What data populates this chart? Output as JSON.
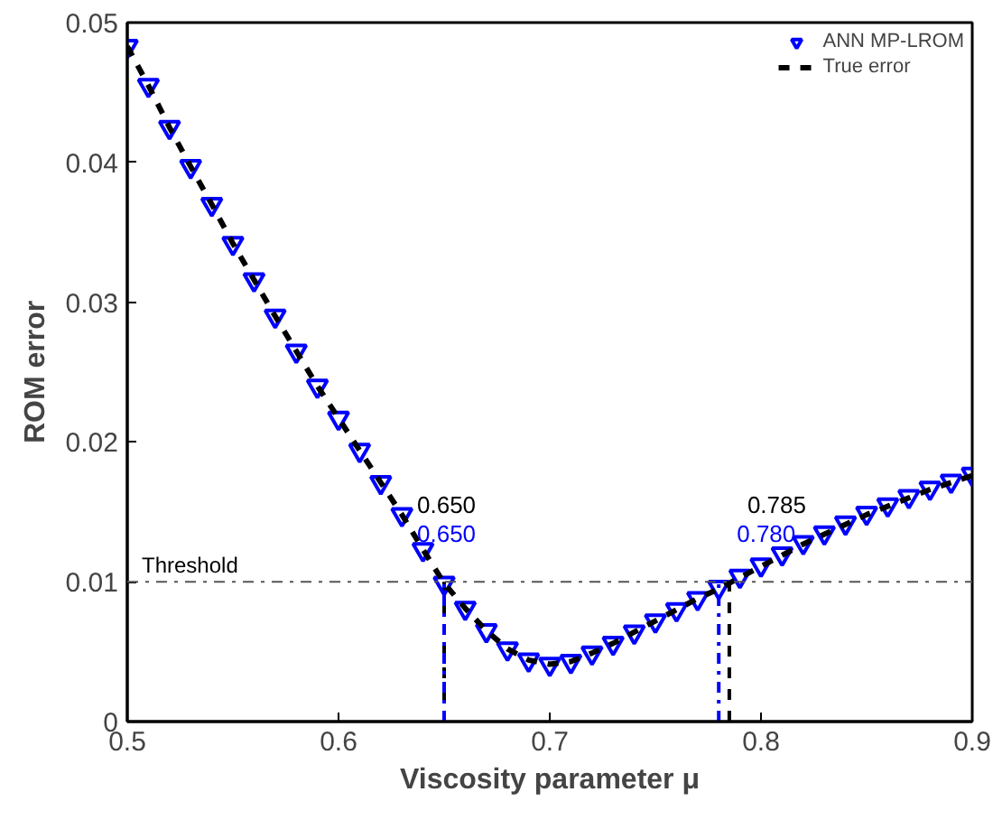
{
  "chart_data": {
    "type": "scatter",
    "xlabel": "Viscosity parameter μ",
    "ylabel": "ROM error",
    "x": [
      0.5,
      0.51,
      0.52,
      0.53,
      0.54,
      0.55,
      0.56,
      0.57,
      0.58,
      0.59,
      0.6,
      0.61,
      0.62,
      0.63,
      0.64,
      0.65,
      0.66,
      0.67,
      0.68,
      0.69,
      0.7,
      0.71,
      0.72,
      0.73,
      0.74,
      0.75,
      0.76,
      0.77,
      0.78,
      0.79,
      0.8,
      0.81,
      0.82,
      0.83,
      0.84,
      0.85,
      0.86,
      0.87,
      0.88,
      0.89,
      0.9
    ],
    "series": [
      {
        "name": "ANN MP-LROM",
        "color": "#0000ff",
        "marker": "triangle",
        "values": [
          0.0483,
          0.0455,
          0.0425,
          0.0397,
          0.037,
          0.0342,
          0.0316,
          0.029,
          0.0265,
          0.024,
          0.0217,
          0.0194,
          0.0171,
          0.0148,
          0.0123,
          0.0099,
          0.0081,
          0.0065,
          0.0052,
          0.0044,
          0.0041,
          0.0043,
          0.0049,
          0.0056,
          0.0064,
          0.0072,
          0.008,
          0.0088,
          0.0096,
          0.0104,
          0.0112,
          0.012,
          0.0128,
          0.0135,
          0.0142,
          0.0149,
          0.0155,
          0.0161,
          0.0167,
          0.0172,
          0.0177
        ]
      },
      {
        "name": "True error",
        "type": "line",
        "color": "#000000",
        "line_style": "dashed",
        "values": [
          0.0483,
          0.0455,
          0.0425,
          0.0397,
          0.037,
          0.0342,
          0.0316,
          0.029,
          0.0265,
          0.024,
          0.0217,
          0.0194,
          0.0171,
          0.0148,
          0.0123,
          0.0099,
          0.0081,
          0.0065,
          0.0052,
          0.0044,
          0.0041,
          0.0043,
          0.0049,
          0.0056,
          0.0064,
          0.0072,
          0.008,
          0.0088,
          0.0095,
          0.0103,
          0.0111,
          0.0119,
          0.0127,
          0.0134,
          0.0141,
          0.0148,
          0.0154,
          0.016,
          0.0166,
          0.0171,
          0.0176
        ]
      }
    ],
    "xlim": [
      0.5,
      0.9
    ],
    "xticks": [
      0.5,
      0.6,
      0.7,
      0.8,
      0.9
    ],
    "ylim": [
      0,
      0.05
    ],
    "yticks": [
      0,
      0.01,
      0.02,
      0.03,
      0.04,
      0.05
    ],
    "ref_lines": [
      {
        "axis": "y",
        "value": 0.01,
        "label": "Threshold",
        "color": "#555555",
        "line_style": "dashdot"
      },
      {
        "axis": "x",
        "value": 0.65,
        "label": "0.650",
        "color": "#000000",
        "line_style": "dashed"
      },
      {
        "axis": "x",
        "value": 0.65,
        "label": "0.650",
        "color": "#0000ff",
        "line_style": "dashdot"
      },
      {
        "axis": "x",
        "value": 0.785,
        "label": "0.785",
        "color": "#000000",
        "line_style": "dashed"
      },
      {
        "axis": "x",
        "value": 0.78,
        "label": "0.780",
        "color": "#0000ff",
        "line_style": "dashdot"
      }
    ],
    "legend": "top right",
    "grid": false
  }
}
